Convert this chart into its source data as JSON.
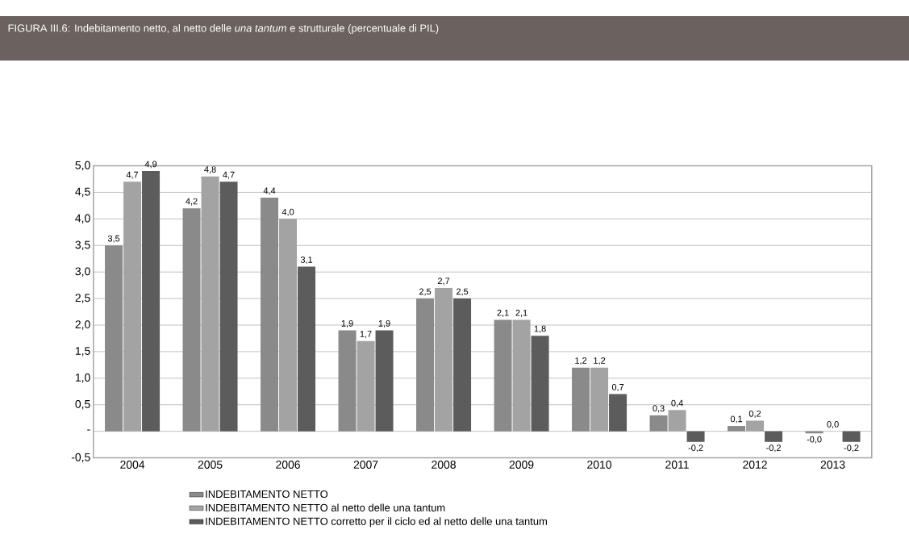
{
  "chart_data": {
    "type": "bar",
    "title": "FIGURA III.6: Indebitamento netto, al netto delle *una tantum* e strutturale (percentuale di PIL)",
    "categories": [
      "2004",
      "2005",
      "2006",
      "2007",
      "2008",
      "2009",
      "2010",
      "2011",
      "2012",
      "2013"
    ],
    "series": [
      {
        "name": "INDEBITAMENTO NETTO",
        "color": "#8a8a8a",
        "values": [
          3.5,
          4.2,
          4.4,
          1.9,
          2.5,
          2.1,
          1.2,
          0.3,
          0.1,
          -0.04
        ],
        "value_labels": [
          "3,5",
          "4,2",
          "4,4",
          "1,9",
          "2,5",
          "2,1",
          "1,2",
          "0,3",
          "0,1",
          "-0,0"
        ]
      },
      {
        "name": "INDEBITAMENTO NETTO al netto delle una tantum",
        "color": "#a3a3a3",
        "values": [
          4.7,
          4.8,
          4.0,
          1.7,
          2.7,
          2.1,
          1.2,
          0.4,
          0.2,
          0.0
        ],
        "value_labels": [
          "4,7",
          "4,8",
          "4,0",
          "1,7",
          "2,7",
          "2,1",
          "1,2",
          "0,4",
          "0,2",
          "0,0"
        ]
      },
      {
        "name": "INDEBITAMENTO NETTO corretto per il ciclo ed al netto delle una tantum",
        "color": "#5c5c5c",
        "values": [
          4.9,
          4.7,
          3.1,
          1.9,
          2.5,
          1.8,
          0.7,
          -0.2,
          -0.2,
          -0.2
        ],
        "value_labels": [
          "4,9",
          "4,7",
          "3,1",
          "1,9",
          "2,5",
          "1,8",
          "0,7",
          "-0,2",
          "-0,2",
          "-0,2"
        ]
      }
    ],
    "ylim": [
      -0.5,
      5.0
    ],
    "yticks": [
      {
        "value": -0.5,
        "label": "-0,5"
      },
      {
        "value": 0,
        "label": "-"
      },
      {
        "value": 0.5,
        "label": "0,5"
      },
      {
        "value": 1.0,
        "label": "1,0"
      },
      {
        "value": 1.5,
        "label": "1,5"
      },
      {
        "value": 2.0,
        "label": "2,0"
      },
      {
        "value": 2.5,
        "label": "2,5"
      },
      {
        "value": 3.0,
        "label": "3,0"
      },
      {
        "value": 3.5,
        "label": "3,5"
      },
      {
        "value": 4.0,
        "label": "4,0"
      },
      {
        "value": 4.5,
        "label": "4,5"
      },
      {
        "value": 5.0,
        "label": "5,0"
      }
    ],
    "grid": "y",
    "legend": "bottom"
  }
}
